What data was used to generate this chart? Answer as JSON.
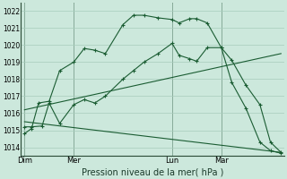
{
  "bg_color": "#cce8dc",
  "grid_color": "#a8ccbc",
  "line_color": "#1a5c32",
  "ylabel_ticks": [
    1014,
    1015,
    1016,
    1017,
    1018,
    1019,
    1020,
    1021,
    1022
  ],
  "ylim": [
    1013.5,
    1022.5
  ],
  "xlabel": "Pression niveau de la mer( hPa )",
  "day_labels": [
    "Dim",
    "Mer",
    "Lun",
    "Mar"
  ],
  "day_positions": [
    0,
    14,
    42,
    56
  ],
  "vline_positions": [
    0,
    14,
    42,
    56
  ],
  "xlim": [
    -1,
    74
  ],
  "series1_x": [
    0,
    2,
    4,
    7,
    10,
    14,
    17,
    20,
    23,
    28,
    31,
    34,
    38,
    42,
    44,
    47,
    49,
    52,
    56,
    59,
    63,
    67,
    70,
    73
  ],
  "series1_y": [
    1014.8,
    1015.1,
    1016.6,
    1016.7,
    1018.5,
    1019.0,
    1019.8,
    1019.7,
    1019.5,
    1021.2,
    1021.75,
    1021.75,
    1021.6,
    1021.5,
    1021.3,
    1021.55,
    1021.55,
    1021.3,
    1019.85,
    1019.1,
    1017.65,
    1016.5,
    1014.3,
    1013.7
  ],
  "series2_x": [
    0,
    2,
    5,
    7,
    10,
    14,
    17,
    20,
    23,
    28,
    31,
    34,
    38,
    42,
    44,
    47,
    49,
    52,
    56,
    59,
    63,
    67,
    70,
    73
  ],
  "series2_y": [
    1015.2,
    1015.2,
    1015.25,
    1016.6,
    1015.4,
    1016.5,
    1016.8,
    1016.6,
    1017.0,
    1018.0,
    1018.5,
    1019.0,
    1019.5,
    1020.1,
    1019.4,
    1019.2,
    1019.05,
    1019.85,
    1019.85,
    1017.8,
    1016.3,
    1014.3,
    1013.8,
    1013.65
  ],
  "series3_x": [
    0,
    73
  ],
  "series3_y": [
    1015.5,
    1013.7
  ],
  "series4_x": [
    0,
    73
  ],
  "series4_y": [
    1016.2,
    1019.5
  ]
}
